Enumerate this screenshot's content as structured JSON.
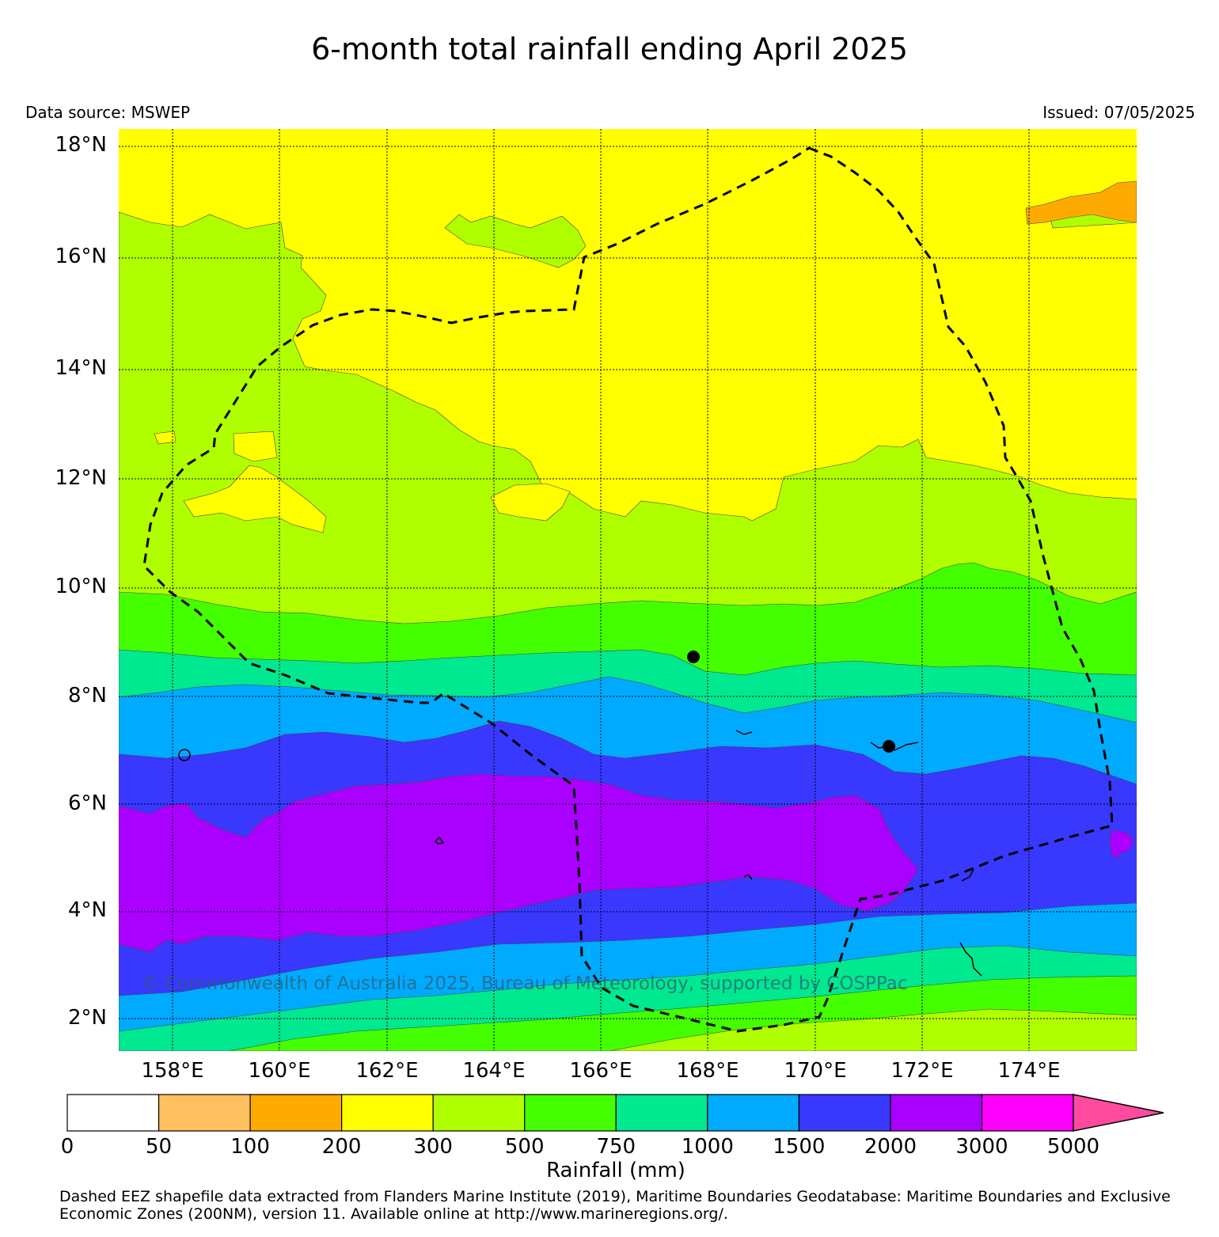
{
  "title": "6-month total rainfall ending April 2025",
  "data_source": "Data source: MSWEP",
  "issued": "Issued: 07/05/2025",
  "copyright": "© Commonwealth of Australia 2025, Bureau of Meteorology, supported by COSPPac",
  "lat_ticks": [
    "18°N",
    "16°N",
    "14°N",
    "12°N",
    "10°N",
    "8°N",
    "6°N",
    "4°N",
    "2°N"
  ],
  "lon_ticks": [
    "158°E",
    "160°E",
    "162°E",
    "164°E",
    "166°E",
    "168°E",
    "170°E",
    "172°E",
    "174°E"
  ],
  "colorbar": {
    "title": "Rainfall (mm)",
    "boundaries": [
      "0",
      "50",
      "100",
      "200",
      "300",
      "500",
      "750",
      "1000",
      "1500",
      "2000",
      "3000",
      "5000"
    ],
    "colors": [
      "#ffffff",
      "#ffc060",
      "#ffaa00",
      "#ffff00",
      "#b0ff00",
      "#44ff00",
      "#00e890",
      "#00aaff",
      "#3838ff",
      "#aa00ff",
      "#ff00ff",
      "#ff4aa0"
    ]
  },
  "footnote": "Dashed EEZ shapefile data extracted from Flanders Marine Institute (2019), Maritime Boundaries Geodatabase: Maritime Boundaries and Exclusive Economic Zones (200NM), version 11. Available online at http://www.marineregions.org/."
}
